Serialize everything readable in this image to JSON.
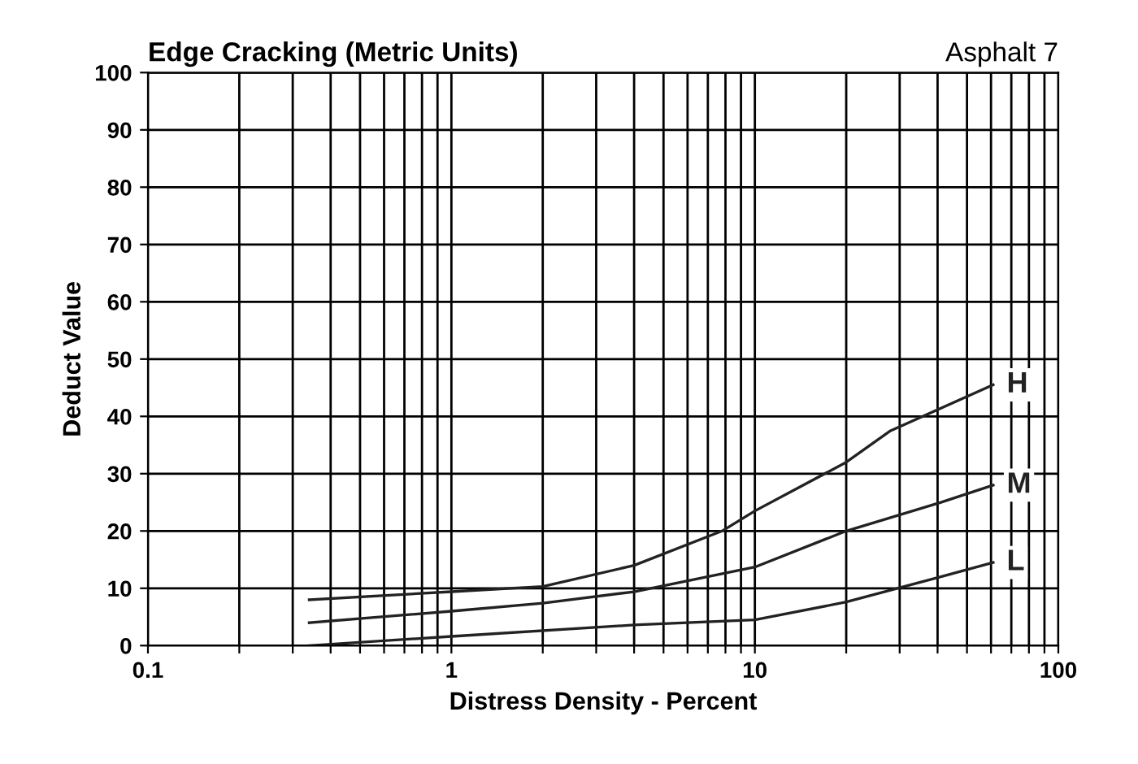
{
  "chart_data": {
    "type": "line",
    "title": "Edge Cracking (Metric Units)",
    "subtitle": "Asphalt 7",
    "xlabel": "Distress Density - Percent",
    "ylabel": "Deduct Value",
    "log": "x",
    "xlim": [
      0.1,
      100
    ],
    "ylim": [
      0,
      100
    ],
    "xticks": [
      0.1,
      {
        "value": 0.2,
        "label": null
      },
      {
        "value": 0.3,
        "label": null
      },
      {
        "value": 0.4,
        "label": null
      },
      {
        "value": 0.5,
        "label": null
      },
      {
        "value": 0.6,
        "label": null
      },
      {
        "value": 0.7,
        "label": null
      },
      {
        "value": 0.8,
        "label": null
      },
      {
        "value": 0.9,
        "label": null
      },
      1,
      {
        "value": 2,
        "label": null
      },
      {
        "value": 3,
        "label": null
      },
      {
        "value": 4,
        "label": null
      },
      {
        "value": 5,
        "label": null
      },
      {
        "value": 6,
        "label": null
      },
      {
        "value": 7,
        "label": null
      },
      {
        "value": 8,
        "label": null
      },
      {
        "value": 9,
        "label": null
      },
      10,
      {
        "value": 20,
        "label": null
      },
      {
        "value": 30,
        "label": null
      },
      {
        "value": 40,
        "label": null
      },
      {
        "value": 50,
        "label": null
      },
      {
        "value": 60,
        "label": null
      },
      {
        "value": 70,
        "label": null
      },
      {
        "value": 80,
        "label": null
      },
      {
        "value": 90,
        "label": null
      },
      100
    ],
    "yticks": [
      0,
      10,
      20,
      30,
      40,
      50,
      60,
      70,
      80,
      90,
      100
    ],
    "grid": true,
    "legend": false,
    "marker": "none",
    "line_style": "solid",
    "series": [
      {
        "name": "H",
        "color": "#222222",
        "x": [
          0.34,
          1,
          2,
          4,
          7.8,
          10,
          20,
          28,
          61
        ],
        "values": [
          8,
          9.4,
          10.3,
          14,
          20,
          23.5,
          32,
          37.5,
          45.5
        ]
      },
      {
        "name": "M",
        "color": "#222222",
        "x": [
          0.34,
          1,
          2,
          4,
          10,
          20,
          41,
          61
        ],
        "values": [
          4,
          6,
          7.4,
          9.4,
          13.7,
          20,
          25,
          28
        ]
      },
      {
        "name": "L",
        "color": "#222222",
        "x": [
          0.34,
          1,
          4,
          10,
          20,
          41,
          61
        ],
        "values": [
          0,
          1.6,
          3.6,
          4.5,
          7.6,
          12,
          14.5
        ]
      }
    ]
  }
}
